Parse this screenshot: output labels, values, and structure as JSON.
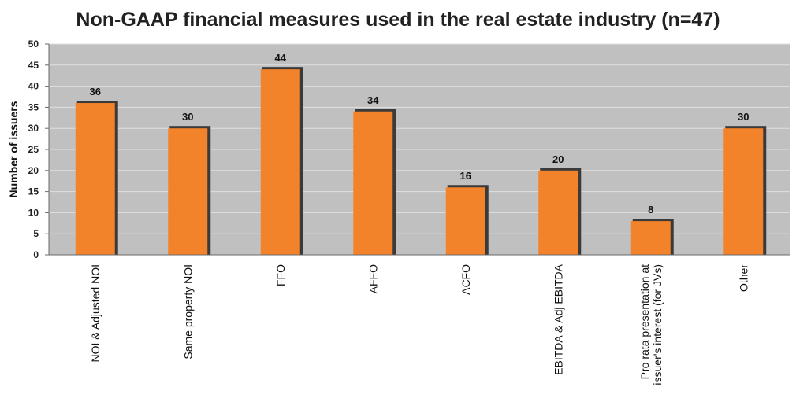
{
  "chart_data": {
    "type": "bar",
    "title": "Non-GAAP financial measures used in the real estate industry (n=47)",
    "xlabel": "",
    "ylabel": "Number of issuers",
    "ylim": [
      0,
      50
    ],
    "yticks": [
      0,
      5,
      10,
      15,
      20,
      25,
      30,
      35,
      40,
      45,
      50
    ],
    "grid": true,
    "legend": "none",
    "categories": [
      [
        "NOI & Adjusted NOI"
      ],
      [
        "Same property NOI"
      ],
      [
        "FFO"
      ],
      [
        "AFFO"
      ],
      [
        "ACFO"
      ],
      [
        "EBITDA & Adj EBITDA"
      ],
      [
        "Pro rata presentation at",
        "issuer's interest (for JVs)"
      ],
      [
        "Other"
      ]
    ],
    "values": [
      36,
      30,
      44,
      34,
      16,
      20,
      8,
      30
    ]
  },
  "colors": {
    "plot_background": "#c0c0c0",
    "bar_fill": "#f3832a",
    "bar_shadow": "#3a3a3a",
    "gridline": "#e0e0e0",
    "axis": "#6a6a6a"
  }
}
